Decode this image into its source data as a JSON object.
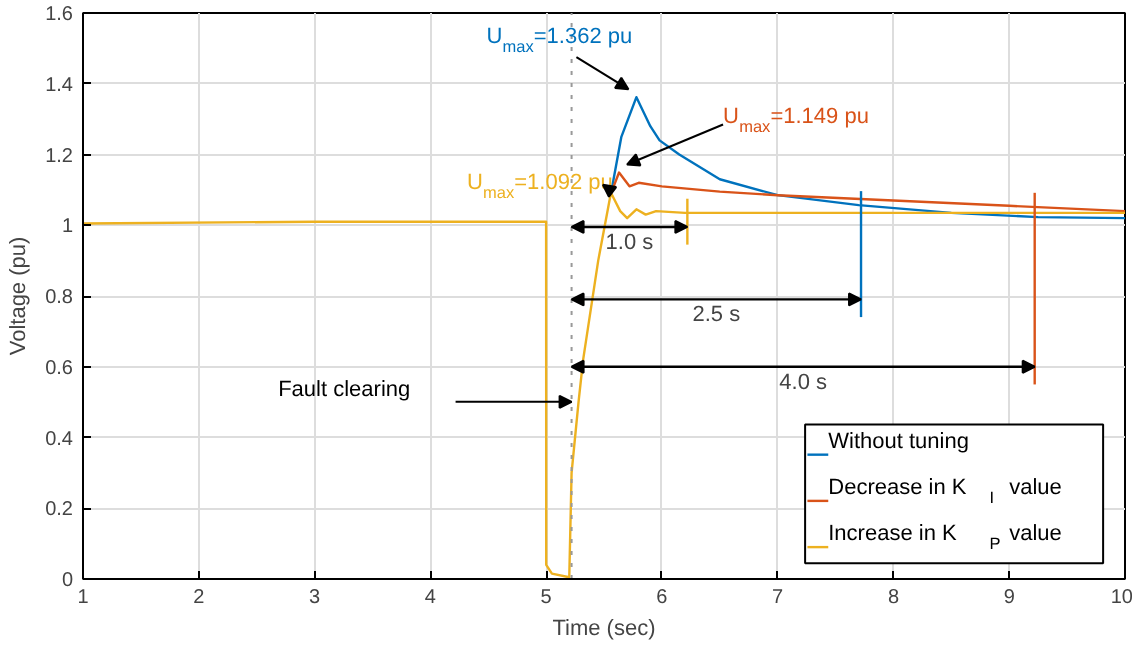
{
  "chart_data": {
    "type": "line",
    "xlabel": "Time (sec)",
    "ylabel": "Voltage (pu)",
    "xlim": [
      1,
      10
    ],
    "ylim": [
      0,
      1.6
    ],
    "xticks": [
      1,
      2,
      3,
      4,
      5,
      6,
      7,
      8,
      9,
      10
    ],
    "yticks": [
      0,
      0.2,
      0.4,
      0.6,
      0.8,
      1,
      1.2,
      1.4,
      1.6
    ],
    "grid": true,
    "legend": "bottom right",
    "line_style": "solid",
    "marker": "none",
    "series": [
      {
        "name": "Without tuning",
        "color": "#0072bd",
        "x": [
          5.56,
          5.65,
          5.78,
          5.9,
          5.98,
          6.15,
          6.5,
          7.0,
          7.7,
          8.5,
          9.25,
          10
        ],
        "values": [
          1.09,
          1.25,
          1.362,
          1.28,
          1.24,
          1.2,
          1.13,
          1.085,
          1.057,
          1.035,
          1.023,
          1.02
        ]
      },
      {
        "name": "Decrease in K$_{I}$ value",
        "color": "#d95319",
        "x": [
          5.56,
          5.63,
          5.72,
          5.8,
          6.0,
          6.5,
          7.0,
          8.0,
          9.0,
          10
        ],
        "values": [
          1.09,
          1.149,
          1.11,
          1.12,
          1.11,
          1.095,
          1.085,
          1.07,
          1.055,
          1.04
        ]
      },
      {
        "name": "Increase in K$_{P}$ value",
        "color": "#edb120",
        "x": [
          1,
          3,
          5,
          5.001,
          5.05,
          5.2,
          5.22,
          5.28,
          5.32,
          5.45,
          5.56,
          5.64,
          5.7,
          5.78,
          5.86,
          5.95,
          6.2,
          7.0,
          10
        ],
        "values": [
          1.005,
          1.01,
          1.01,
          0.04,
          0.015,
          0.005,
          0.3,
          0.5,
          0.62,
          0.9,
          1.092,
          1.04,
          1.02,
          1.045,
          1.03,
          1.04,
          1.035,
          1.035,
          1.035
        ]
      }
    ],
    "ref_lines": [
      {
        "axis": "x",
        "value": 5.22,
        "color": "#999999",
        "line_style": "dotted"
      },
      {
        "axis": "x",
        "value": 6.22,
        "color": "#edb120",
        "line_style": "solid"
      },
      {
        "axis": "x",
        "value": 7.72,
        "color": "#0072bd",
        "line_style": "solid"
      },
      {
        "axis": "x",
        "value": 9.22,
        "color": "#d95319",
        "line_style": "solid"
      }
    ],
    "annotations": [
      {
        "text": "U$_{max}$=1.362 pu",
        "x": 5.78,
        "y": 1.362
      },
      {
        "text": "U$_{max}$=1.149 pu",
        "x": 5.63,
        "y": 1.149
      },
      {
        "text": "U$_{max}$=1.092 pu",
        "x": 5.56,
        "y": 1.092
      },
      "Fault clearing",
      "1.0 s",
      "2.5 s",
      "4.0 s"
    ]
  }
}
